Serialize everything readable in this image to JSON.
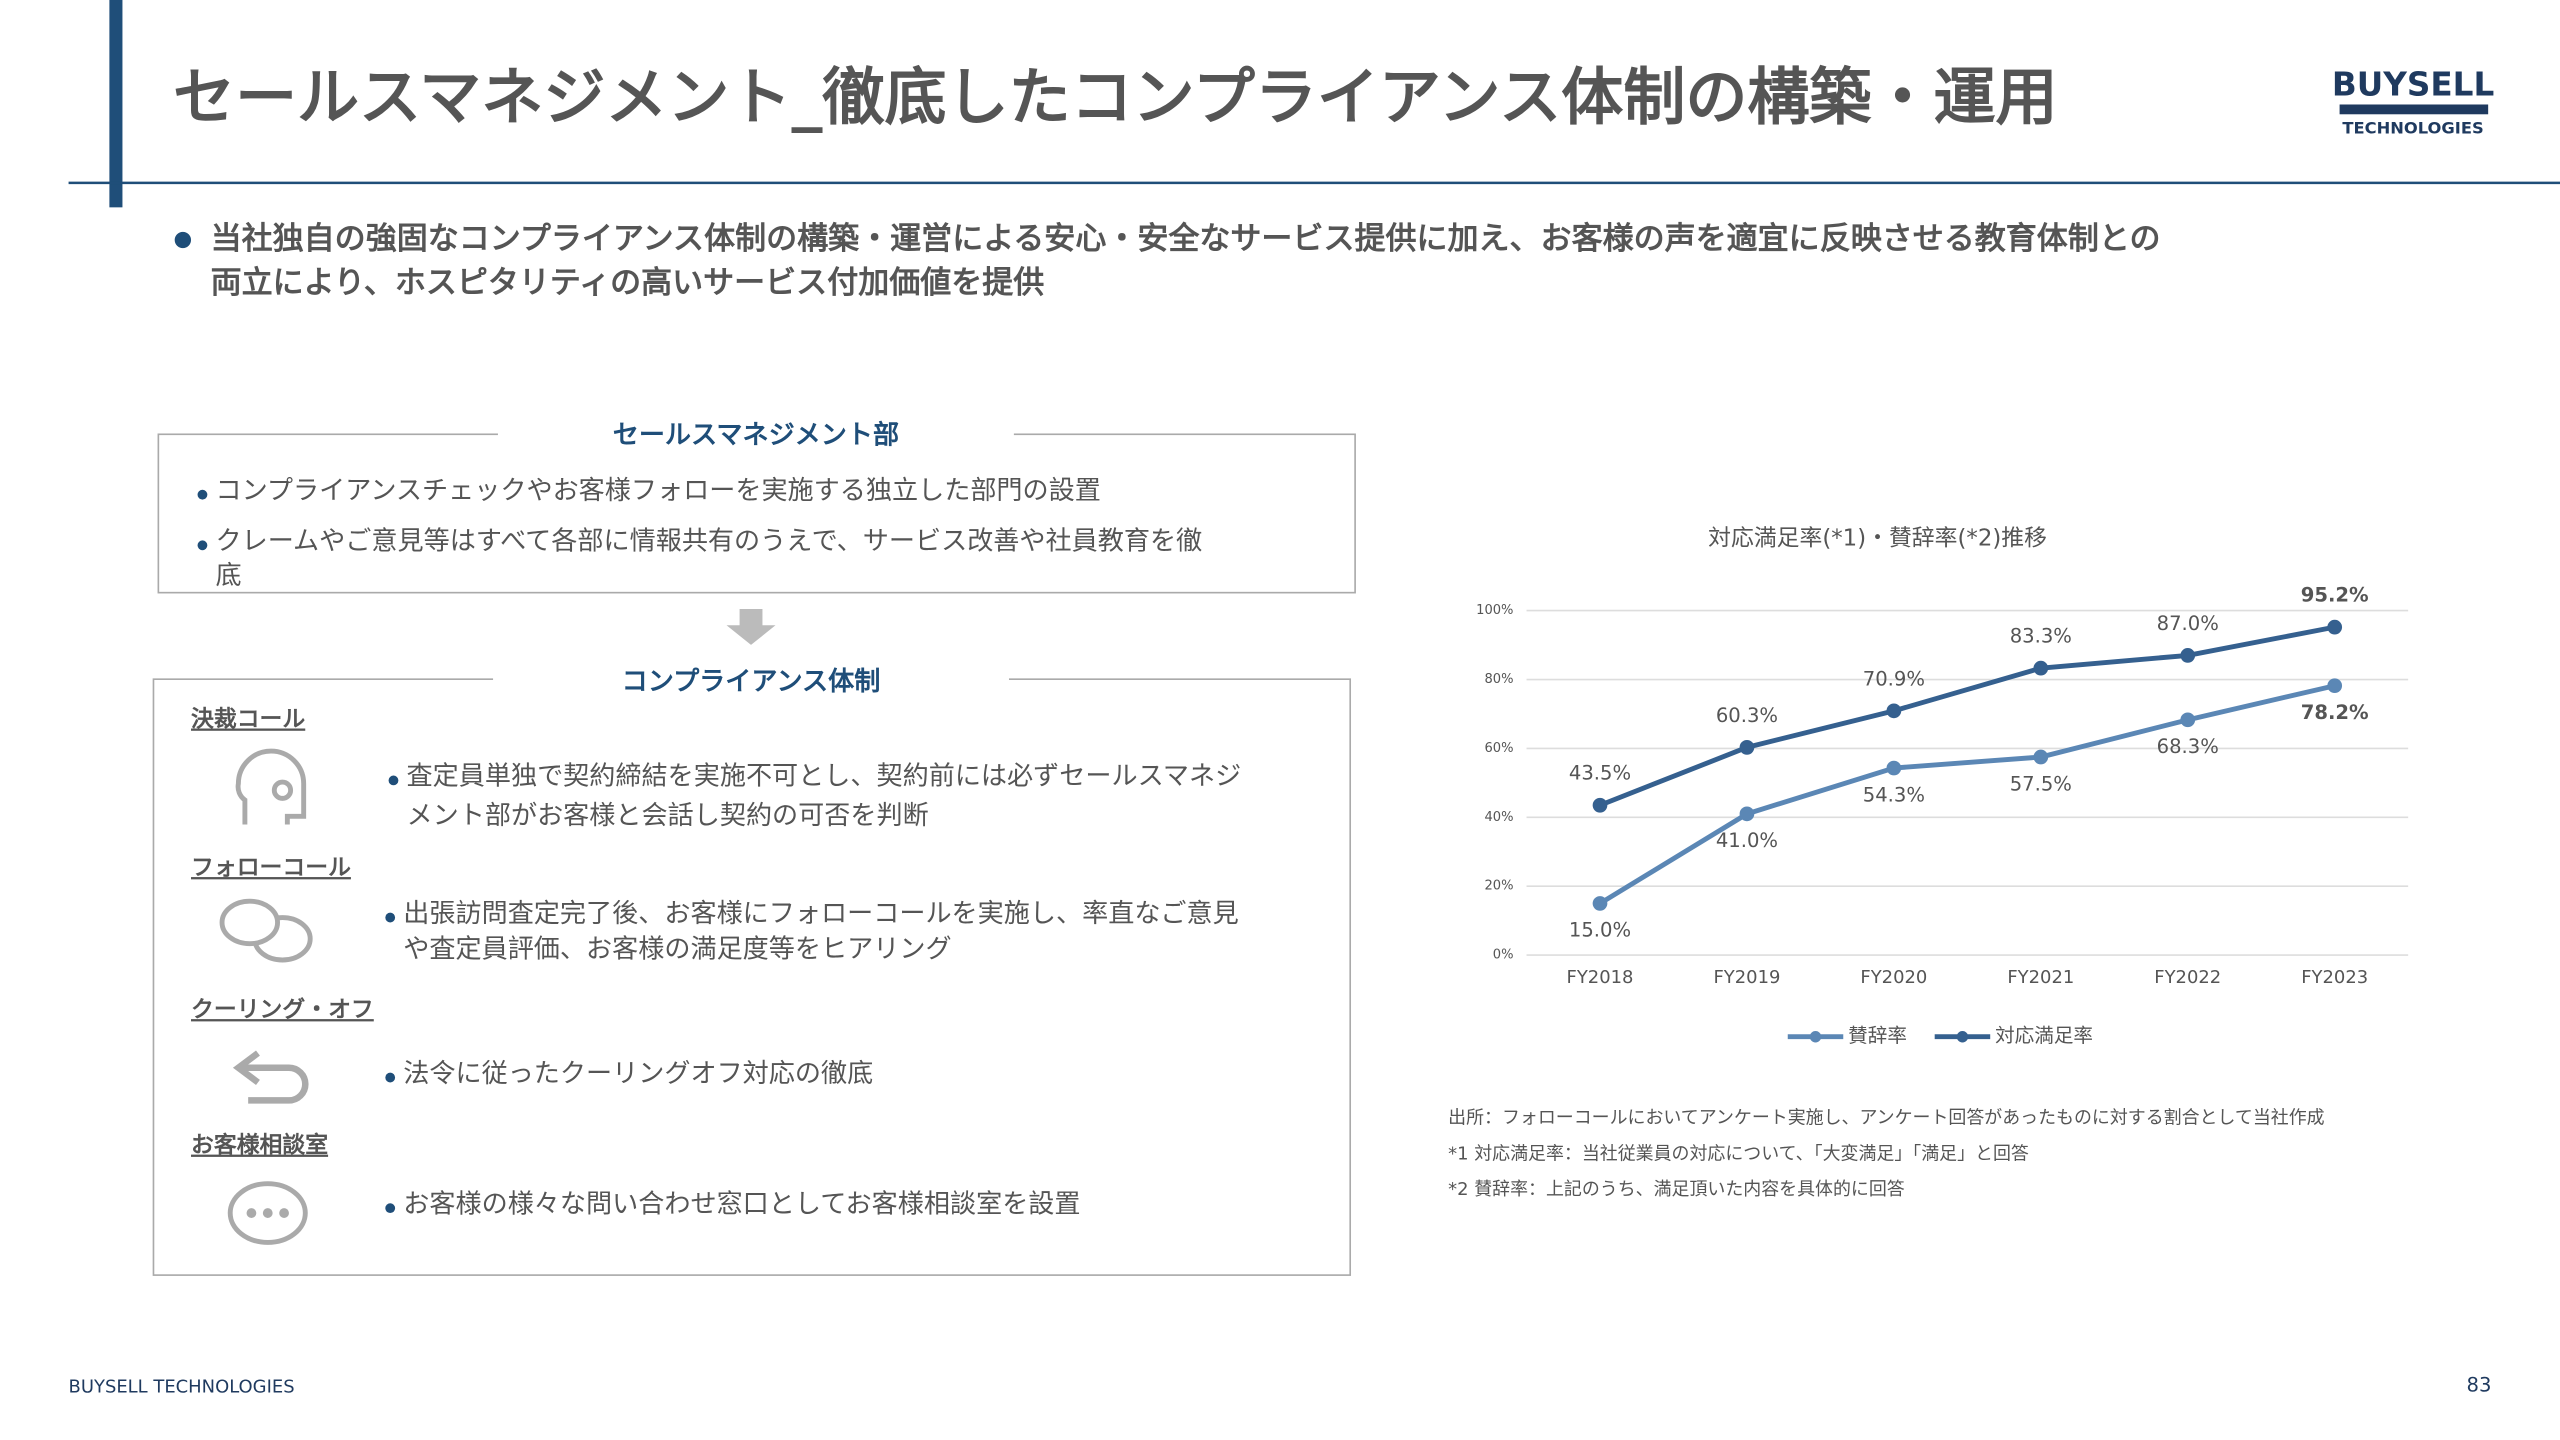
{
  "header": {
    "title": "セールスマネジメント_徹底したコンプライアンス体制の構築・運用",
    "logo_top": "BUYSELL",
    "logo_bottom": "TECHNOLOGIES"
  },
  "summary": [
    "当社独自の強固なコンプライアンス体制の構築・運営による安心・安全なサービス提供に加え、お客様の声を適宜に反映させる教育体制との",
    "両立により、ホスピタリティの高いサービス付加価値を提供"
  ],
  "sales_dept": {
    "title": "セールスマネジメント部",
    "bullets": [
      [
        "コンプライアンスチェックやお客様フォローを実施する独立した部門の設置"
      ],
      [
        "クレームやご意見等はすべて各部に情報共有のうえで、サービス改善や社員教育を徹",
        "底"
      ]
    ]
  },
  "compliance": {
    "title": "コンプライアンス体制",
    "items": [
      {
        "label": "決裁コール",
        "text": [
          "査定員単独で契約締結を実施不可とし、契約前には必ずセールスマネジ",
          "メント部がお客様と会話し契約の可否を判断"
        ]
      },
      {
        "label": "フォローコール",
        "text": [
          "出張訪問査定完了後、お客様にフォローコールを実施し、率直なご意見",
          "や査定員評価、お客様の満足度等をヒアリング"
        ]
      },
      {
        "label": "クーリング・オフ",
        "text": [
          "法令に従ったクーリングオフ対応の徹底"
        ]
      },
      {
        "label": "お客様相談室",
        "text": [
          "お客様の様々な問い合わせ窓口としてお客様相談室を設置"
        ]
      }
    ]
  },
  "chart_data": {
    "type": "line",
    "title": "対応満足率(*1)・賛辞率(*2)推移",
    "categories": [
      "FY2018",
      "FY2019",
      "FY2020",
      "FY2021",
      "FY2022",
      "FY2023"
    ],
    "series": [
      {
        "name": "賛辞率",
        "color": "#5b87b5",
        "values": [
          15.0,
          41.0,
          54.3,
          57.5,
          68.3,
          78.2
        ],
        "value_labels": [
          "15.0%",
          "41.0%",
          "54.3%",
          "57.5%",
          "68.3%",
          "78.2%"
        ]
      },
      {
        "name": "対応満足率",
        "color": "#35608f",
        "values": [
          43.5,
          60.3,
          70.9,
          83.3,
          87.0,
          95.2
        ],
        "value_labels": [
          "43.5%",
          "60.3%",
          "70.9%",
          "83.3%",
          "87.0%",
          "95.2%"
        ]
      }
    ],
    "ylim": [
      0,
      100
    ],
    "yticks": [
      {
        "value": 0,
        "label": "0%"
      },
      {
        "value": 20,
        "label": "20%"
      },
      {
        "value": 40,
        "label": "40%"
      },
      {
        "value": 60,
        "label": "60%"
      },
      {
        "value": 80,
        "label": "80%"
      },
      {
        "value": 100,
        "label": "100%"
      }
    ],
    "grid": true,
    "legend": "bottom"
  },
  "notes": [
    "出所：フォローコールにおいてアンケート実施し、アンケート回答があったものに対する割合として当社作成",
    "*1 対応満足率：当社従業員の対応について、「大変満足」「満足」と回答",
    "*2 賛辞率：上記のうち、満足頂いた内容を具体的に回答"
  ],
  "footer": {
    "company": "BUYSELL TECHNOLOGIES",
    "page": "83"
  }
}
